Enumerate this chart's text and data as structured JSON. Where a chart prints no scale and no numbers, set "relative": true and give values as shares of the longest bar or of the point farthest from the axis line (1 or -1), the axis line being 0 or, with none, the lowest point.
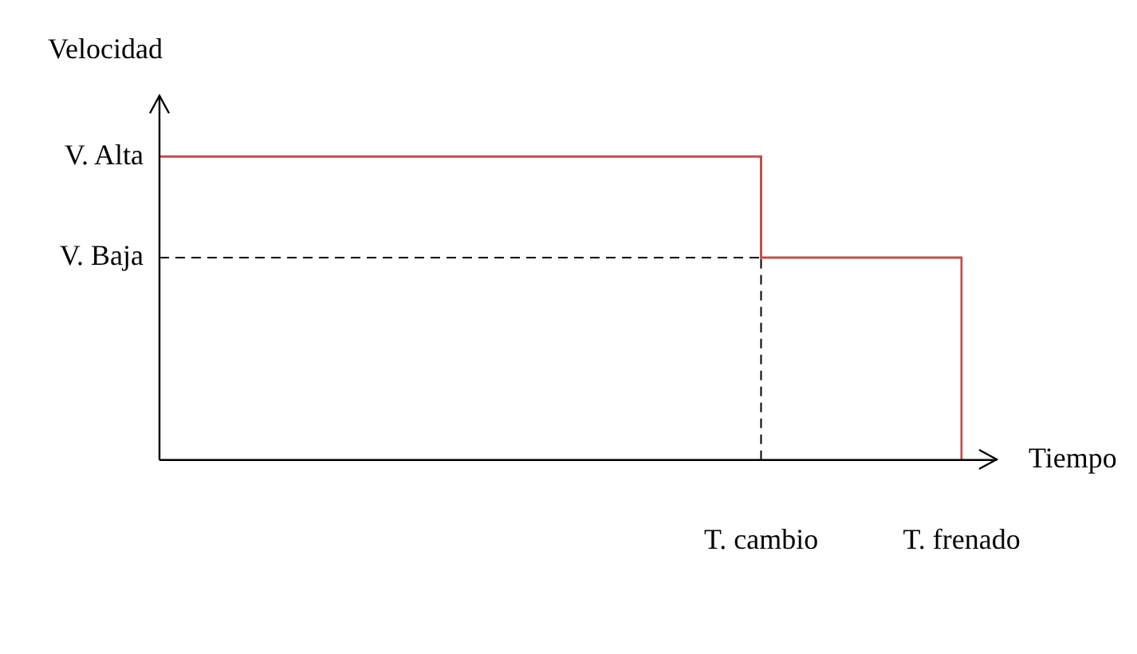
{
  "chart_data": {
    "type": "step",
    "relative": true,
    "xlabel": "Tiempo",
    "ylabel": "Velocidad",
    "categories": [
      null,
      null,
      null,
      "T. cambio",
      "T. frenado"
    ],
    "series": [
      {
        "color": "#c0504d",
        "values": [
          1,
          1,
          1,
          0.667,
          0
        ]
      }
    ],
    "annotations": [
      "V. Alta"
    ],
    "ref_lines": [
      {
        "axis": "y",
        "value": 0.667,
        "label": "V. Baja",
        "color": "#000000",
        "line_style": "dashed"
      },
      {
        "axis": "x",
        "value": "T. cambio",
        "color": "#000000",
        "line_style": "dashed"
      }
    ],
    "grid": false,
    "legend": false
  }
}
